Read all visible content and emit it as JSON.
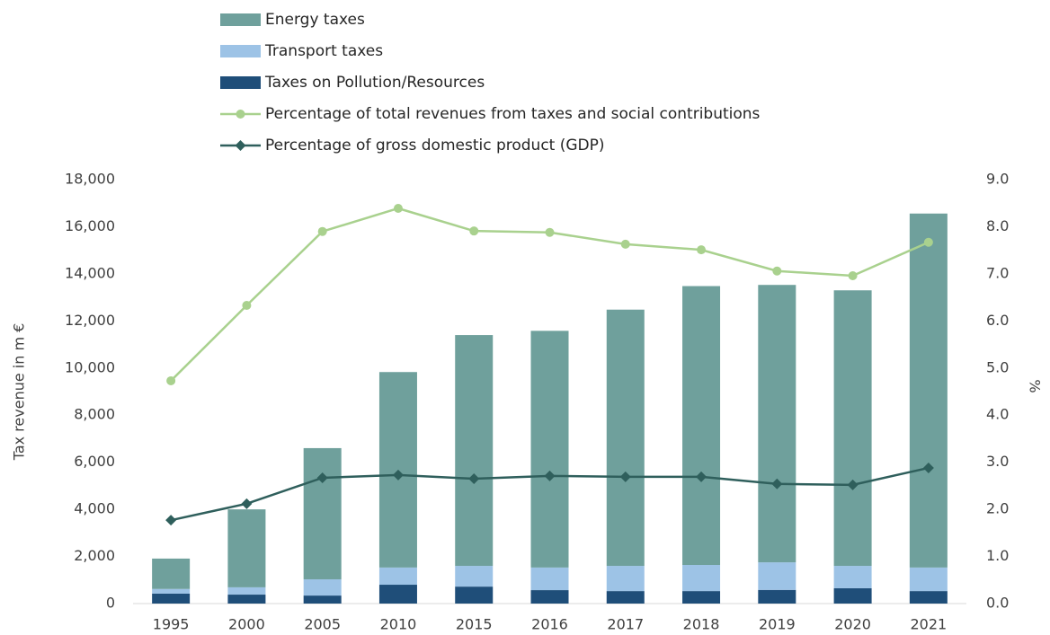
{
  "chart_data": {
    "type": "bar",
    "categories": [
      "1995",
      "2000",
      "2005",
      "2010",
      "2015",
      "2016",
      "2017",
      "2018",
      "2019",
      "2020",
      "2021"
    ],
    "series": [
      {
        "name": "Energy taxes",
        "type": "bar",
        "color": "#6fa09c",
        "values": [
          1290,
          3310,
          5570,
          8300,
          9800,
          10050,
          10880,
          11840,
          11780,
          11700,
          15030
        ]
      },
      {
        "name": "Transport taxes",
        "type": "bar",
        "color": "#9dc3e6",
        "values": [
          200,
          310,
          690,
          730,
          880,
          960,
          1070,
          1110,
          1170,
          950,
          1000
        ]
      },
      {
        "name": "Taxes on Pollution/Resources",
        "type": "bar",
        "color": "#1f4e79",
        "values": [
          420,
          380,
          340,
          800,
          720,
          570,
          530,
          530,
          580,
          650,
          530
        ]
      },
      {
        "name": "Percentage of total revenues from taxes and social contributions",
        "type": "line",
        "axis": "y2",
        "color": "#a9d18e",
        "marker": "circle",
        "values": [
          4.73,
          6.33,
          7.9,
          8.39,
          7.91,
          7.88,
          7.63,
          7.51,
          7.06,
          6.96,
          7.67
        ]
      },
      {
        "name": "Percentage of gross domestic product (GDP)",
        "type": "line",
        "axis": "y2",
        "color": "#2f5f5c",
        "marker": "diamond",
        "values": [
          1.77,
          2.12,
          2.67,
          2.73,
          2.65,
          2.71,
          2.69,
          2.69,
          2.54,
          2.52,
          2.88
        ]
      }
    ],
    "ylabel": "Tax revenue in m €",
    "y2label": "%",
    "ylim": [
      0,
      18000
    ],
    "yticks": [
      0,
      {
        "value": 2000,
        "label": "2,000"
      },
      {
        "value": 4000,
        "label": "4,000"
      },
      {
        "value": 6000,
        "label": "6,000"
      },
      {
        "value": 8000,
        "label": "8,000"
      },
      {
        "value": 10000,
        "label": "10,000"
      },
      {
        "value": 12000,
        "label": "12,000"
      },
      {
        "value": 14000,
        "label": "14,000"
      },
      {
        "value": 16000,
        "label": "16,000"
      },
      {
        "value": 18000,
        "label": "18,000"
      }
    ],
    "y2lim": [
      0,
      9
    ],
    "y2ticks": [
      {
        "value": 0,
        "label": "0.0"
      },
      {
        "value": 1,
        "label": "1.0"
      },
      {
        "value": 2,
        "label": "2.0"
      },
      {
        "value": 3,
        "label": "3.0"
      },
      {
        "value": 4,
        "label": "4.0"
      },
      {
        "value": 5,
        "label": "5.0"
      },
      {
        "value": 6,
        "label": "6.0"
      },
      {
        "value": 7,
        "label": "7.0"
      },
      {
        "value": 8,
        "label": "8.0"
      },
      {
        "value": 9,
        "label": "9.0"
      }
    ],
    "legend": "top-left",
    "grid": false
  }
}
